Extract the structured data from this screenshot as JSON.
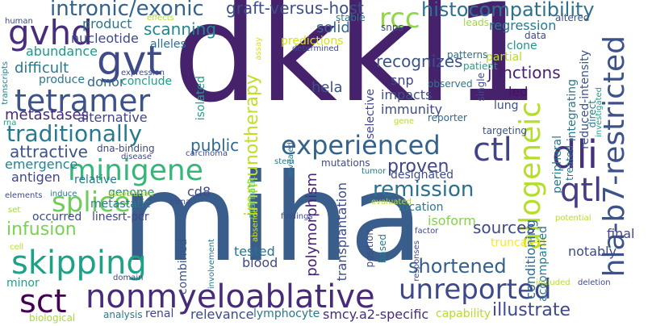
{
  "words": [
    {
      "text": "dkkl1",
      "color": "#46226c"
    },
    {
      "text": "miha",
      "color": "#3a5e8c"
    },
    {
      "text": "nonmyeloablative",
      "color": "#472a7a"
    },
    {
      "text": "allogeneic",
      "color": "#b5de2b"
    },
    {
      "text": "skipping",
      "color": "#1fa188"
    },
    {
      "text": "gvt",
      "color": "#3e4a89"
    },
    {
      "text": "gvhd",
      "color": "#472d7b"
    },
    {
      "text": "tetramer",
      "color": "#3b528b"
    },
    {
      "text": "dli",
      "color": "#46307e"
    },
    {
      "text": "ctl",
      "color": "#414487"
    },
    {
      "text": "qtl",
      "color": "#433e85"
    },
    {
      "text": "sct",
      "color": "#440154"
    },
    {
      "text": "splice",
      "color": "#6ece58"
    },
    {
      "text": "minigene",
      "color": "#35b779"
    },
    {
      "text": "hla-b7-restricted",
      "color": "#3b528b"
    },
    {
      "text": "experienced",
      "color": "#33638d"
    },
    {
      "text": "intronic/exonic",
      "color": "#33638d"
    },
    {
      "text": "unreported",
      "color": "#3e4989"
    },
    {
      "text": "traditionally",
      "color": "#2a788e"
    },
    {
      "text": "rcc",
      "color": "#8fd744"
    },
    {
      "text": "remission",
      "color": "#2d708e"
    },
    {
      "text": "shortened",
      "color": "#355f8d"
    },
    {
      "text": "histocompatibility",
      "color": "#2c728e"
    },
    {
      "text": "graft-versus-host",
      "color": "#3c4f8a"
    },
    {
      "text": "scanning",
      "color": "#25858e"
    },
    {
      "text": "attractive",
      "color": "#3b528b"
    },
    {
      "text": "illustrate",
      "color": "#3e4989"
    },
    {
      "text": "infusion",
      "color": "#7ad151"
    },
    {
      "text": "proven",
      "color": "#3f4788"
    },
    {
      "text": "public",
      "color": "#31688e"
    },
    {
      "text": "immunotherapy",
      "color": "#c2df23"
    },
    {
      "text": "recognizes",
      "color": "#3b528b"
    },
    {
      "text": "metastases",
      "color": "#482878"
    },
    {
      "text": "difficult",
      "color": "#2a788e"
    },
    {
      "text": "junctions",
      "color": "#481f70"
    },
    {
      "text": "sources",
      "color": "#3e4989"
    },
    {
      "text": "solid",
      "color": "#31688e"
    },
    {
      "text": "regression",
      "color": "#2a788e"
    },
    {
      "text": "alternative",
      "color": "#404688"
    },
    {
      "text": "designated",
      "color": "#3e4c8a"
    },
    {
      "text": "hela",
      "color": "#3b528b"
    },
    {
      "text": "donor",
      "color": "#31688e"
    },
    {
      "text": "nucleotide",
      "color": "#3e4a89"
    },
    {
      "text": "product",
      "color": "#2a778e"
    },
    {
      "text": "abundance",
      "color": "#1f988b"
    },
    {
      "text": "emergence",
      "color": "#25838e"
    },
    {
      "text": "antigen",
      "color": "#3f4788"
    },
    {
      "text": "conclude",
      "color": "#1f9e89"
    },
    {
      "text": "produce",
      "color": "#2a788e"
    },
    {
      "text": "alleles",
      "color": "#2e6e8e"
    },
    {
      "text": "predictions",
      "color": "#d8e219"
    },
    {
      "text": "snp",
      "color": "#414487"
    },
    {
      "text": "impacts",
      "color": "#3b528b"
    },
    {
      "text": "immunity",
      "color": "#3e4a89"
    },
    {
      "text": "clone",
      "color": "#1f948c"
    },
    {
      "text": "partial",
      "color": "#b5de2b"
    },
    {
      "text": "led",
      "color": "#471063"
    },
    {
      "text": "lung",
      "color": "#3b528b"
    },
    {
      "text": "location",
      "color": "#2a788e"
    },
    {
      "text": "isoform",
      "color": "#84d44b"
    },
    {
      "text": "truncated",
      "color": "#fde725"
    },
    {
      "text": "notably",
      "color": "#3e4a89"
    },
    {
      "text": "final",
      "color": "#414487"
    },
    {
      "text": "polymorphism",
      "color": "#482475"
    },
    {
      "text": "transplantation",
      "color": "#3e4a89"
    },
    {
      "text": "tested",
      "color": "#2c718e"
    },
    {
      "text": "blood",
      "color": "#3e4a89"
    },
    {
      "text": "relevance",
      "color": "#3e4989"
    },
    {
      "text": "lymphocyte",
      "color": "#2a788e"
    },
    {
      "text": "smcy.a2-specific",
      "color": "#472c7a"
    },
    {
      "text": "capability",
      "color": "#b5de2b"
    },
    {
      "text": "renal",
      "color": "#3f4788"
    },
    {
      "text": "minor",
      "color": "#1f9e89"
    },
    {
      "text": "analysis",
      "color": "#2a788e"
    },
    {
      "text": "biological",
      "color": "#a8db34"
    },
    {
      "text": "rt-pcr",
      "color": "#404688"
    },
    {
      "text": "lines",
      "color": "#3e4989"
    },
    {
      "text": "occurred",
      "color": "#3e4989"
    },
    {
      "text": "metastatic",
      "color": "#2a788e"
    },
    {
      "text": "genome",
      "color": "#26828e"
    },
    {
      "text": "relative",
      "color": "#2a788e"
    },
    {
      "text": "cd8",
      "color": "#3e4a89"
    },
    {
      "text": "combined",
      "color": "#3b528b"
    },
    {
      "text": "conditioning",
      "color": "#31688e"
    },
    {
      "text": "accompanied",
      "color": "#2a788e"
    },
    {
      "text": "peripheral",
      "color": "#2a788e"
    },
    {
      "text": "reduced-intensity",
      "color": "#3b528b"
    },
    {
      "text": "integrating",
      "color": "#2a788e"
    },
    {
      "text": "isolated",
      "color": "#1f9e89"
    },
    {
      "text": "selective",
      "color": "#3e4989"
    },
    {
      "text": "dramatic",
      "color": "#5ec962"
    },
    {
      "text": "stable",
      "color": "#2a788e"
    },
    {
      "text": "snps",
      "color": "#3e4989"
    },
    {
      "text": "leads",
      "color": "#a0da39"
    },
    {
      "text": "altered",
      "color": "#3b528b"
    },
    {
      "text": "direct",
      "color": "#2a788e"
    },
    {
      "text": "data",
      "color": "#3e4989"
    },
    {
      "text": "patterns",
      "color": "#2c718e"
    },
    {
      "text": "patient",
      "color": "#1f9e89"
    },
    {
      "text": "observed",
      "color": "#2a788e"
    },
    {
      "text": "single",
      "color": "#3e4989"
    },
    {
      "text": "reporter",
      "color": "#31688e"
    },
    {
      "text": "gene",
      "color": "#b5de2b"
    },
    {
      "text": "targeting",
      "color": "#3b528b"
    },
    {
      "text": "investigated",
      "color": "#1f9e89"
    },
    {
      "text": "treated",
      "color": "#2a788e"
    },
    {
      "text": "determined",
      "color": "#3e4989"
    },
    {
      "text": "assay",
      "color": "#d8e219"
    },
    {
      "text": "effects",
      "color": "#b5de2b"
    },
    {
      "text": "human",
      "color": "#3e4989"
    },
    {
      "text": "transcripts",
      "color": "#2a788e"
    },
    {
      "text": "expression",
      "color": "#3e4989"
    },
    {
      "text": "rna",
      "color": "#1f9e89"
    },
    {
      "text": "dna-binding",
      "color": "#3e4989"
    },
    {
      "text": "disease",
      "color": "#3e4989"
    },
    {
      "text": "carcinoma",
      "color": "#3e4989"
    },
    {
      "text": "stem",
      "color": "#2a788e"
    },
    {
      "text": "mutations",
      "color": "#3e4989"
    },
    {
      "text": "tumor",
      "color": "#2a788e"
    },
    {
      "text": "revealed",
      "color": "#2a788e"
    },
    {
      "text": "evaluated",
      "color": "#b5de2b"
    },
    {
      "text": "elements",
      "color": "#3e4989"
    },
    {
      "text": "induce",
      "color": "#2a788e"
    },
    {
      "text": "association",
      "color": "#b5de2b"
    },
    {
      "text": "mrna",
      "color": "#3e4989"
    },
    {
      "text": "set",
      "color": "#a0da39"
    },
    {
      "text": "findings",
      "color": "#3e4989"
    },
    {
      "text": "absence",
      "color": "#d8e219"
    },
    {
      "text": "potential",
      "color": "#b5de2b"
    },
    {
      "text": "factor",
      "color": "#3e4989"
    },
    {
      "text": "cell",
      "color": "#b5de2b"
    },
    {
      "text": "domain",
      "color": "#3e4989"
    },
    {
      "text": "involvement",
      "color": "#2a788e"
    },
    {
      "text": "responses",
      "color": "#3e4989"
    },
    {
      "text": "included",
      "color": "#b5de2b"
    },
    {
      "text": "deletion",
      "color": "#3e4989"
    },
    {
      "text": "based",
      "color": "#2a788e"
    },
    {
      "text": "position",
      "color": "#3e4989"
    }
  ]
}
